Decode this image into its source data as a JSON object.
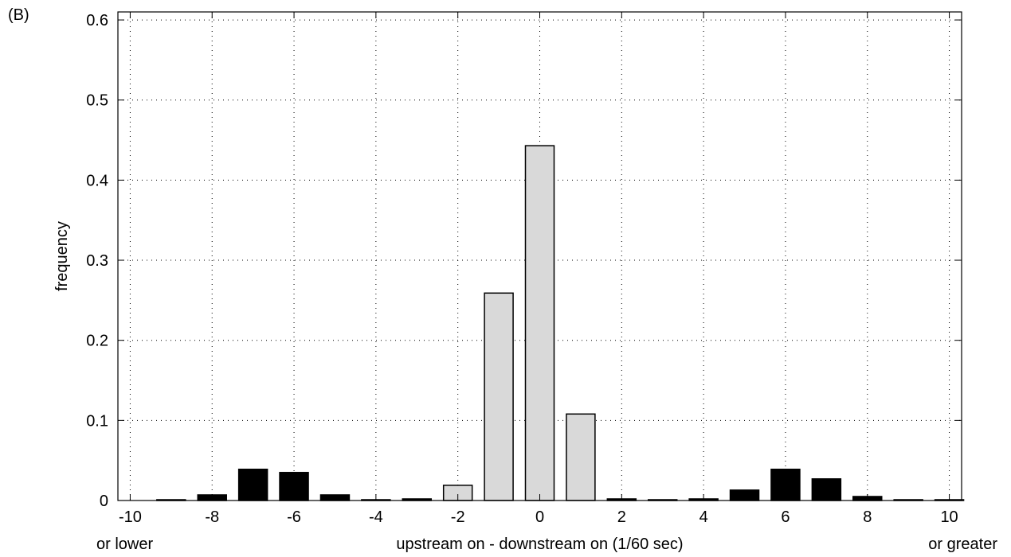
{
  "panel_label": "(B)",
  "chart_data": {
    "type": "bar",
    "title": "",
    "xlabel": "upstream on - downstream on (1/60 sec)",
    "ylabel": "frequency",
    "xlim": [
      -10.3,
      10.3
    ],
    "ylim": [
      0,
      0.61
    ],
    "grid": true,
    "x": [
      -10,
      -9,
      -8,
      -7,
      -6,
      -5,
      -4,
      -3,
      -2,
      -1,
      0,
      1,
      2,
      3,
      4,
      5,
      6,
      7,
      8,
      9,
      10
    ],
    "values": [
      0.0,
      0.001,
      0.007,
      0.039,
      0.035,
      0.007,
      0.001,
      0.002,
      0.019,
      0.259,
      0.443,
      0.108,
      0.002,
      0.001,
      0.002,
      0.013,
      0.039,
      0.027,
      0.005,
      0.001,
      0.001
    ],
    "bar_colors": [
      "#000000",
      "#000000",
      "#000000",
      "#000000",
      "#000000",
      "#000000",
      "#000000",
      "#000000",
      "#d9d9d9",
      "#d9d9d9",
      "#d9d9d9",
      "#d9d9d9",
      "#000000",
      "#000000",
      "#000000",
      "#000000",
      "#000000",
      "#000000",
      "#000000",
      "#000000",
      "#000000"
    ],
    "xticks": [
      -10,
      -8,
      -6,
      -4,
      -2,
      0,
      2,
      4,
      6,
      8,
      10
    ],
    "xtick_labels": [
      "-10",
      "-8",
      "-6",
      "-4",
      "-2",
      "0",
      "2",
      "4",
      "6",
      "8",
      "10"
    ],
    "yticks": [
      0,
      0.1,
      0.2,
      0.3,
      0.4,
      0.5,
      0.6
    ],
    "ytick_labels": [
      "0",
      "0.1",
      "0.2",
      "0.3",
      "0.4",
      "0.5",
      "0.6"
    ],
    "x_edge_notes": {
      "left": "or lower",
      "right": "or greater"
    }
  }
}
